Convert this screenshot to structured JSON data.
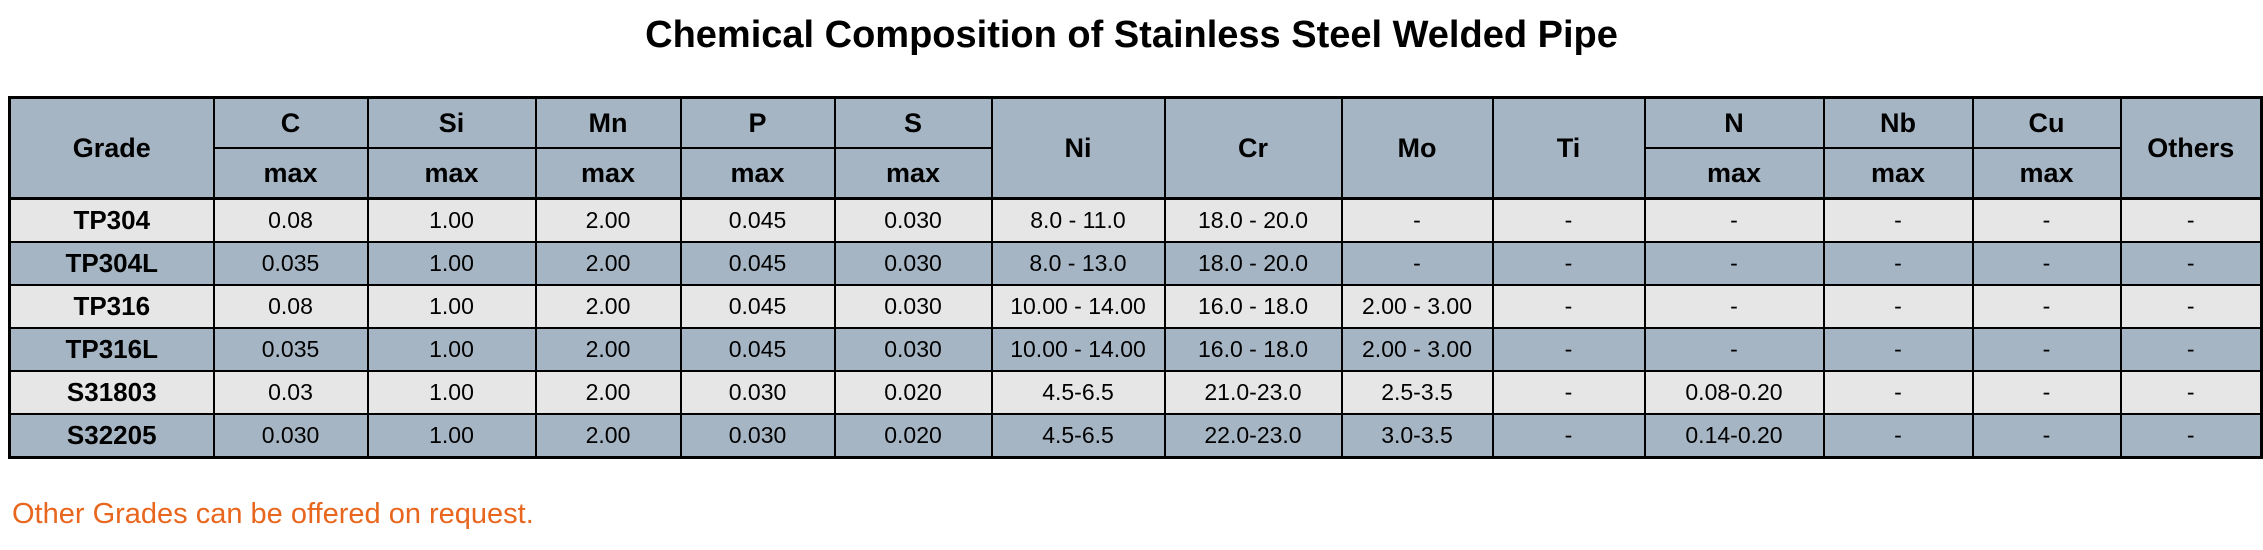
{
  "title": "Chemical Composition of Stainless Steel Welded Pipe",
  "headers": {
    "grade": "Grade",
    "c": "C",
    "si": "Si",
    "mn": "Mn",
    "p": "P",
    "s": "S",
    "ni": "Ni",
    "cr": "Cr",
    "mo": "Mo",
    "ti": "Ti",
    "n": "N",
    "nb": "Nb",
    "cu": "Cu",
    "others": "Others",
    "sub_max": "max"
  },
  "rows": [
    [
      "TP304",
      "0.08",
      "1.00",
      "2.00",
      "0.045",
      "0.030",
      "8.0 - 11.0",
      "18.0 - 20.0",
      "-",
      "-",
      "-",
      "-",
      "-",
      "-"
    ],
    [
      "TP304L",
      "0.035",
      "1.00",
      "2.00",
      "0.045",
      "0.030",
      "8.0 - 13.0",
      "18.0 - 20.0",
      "-",
      "-",
      "-",
      "-",
      "-",
      "-"
    ],
    [
      "TP316",
      "0.08",
      "1.00",
      "2.00",
      "0.045",
      "0.030",
      "10.00 - 14.00",
      "16.0 - 18.0",
      "2.00 - 3.00",
      "-",
      "-",
      "-",
      "-",
      "-"
    ],
    [
      "TP316L",
      "0.035",
      "1.00",
      "2.00",
      "0.045",
      "0.030",
      "10.00 - 14.00",
      "16.0 - 18.0",
      "2.00 - 3.00",
      "-",
      "-",
      "-",
      "-",
      "-"
    ],
    [
      "S31803",
      "0.03",
      "1.00",
      "2.00",
      "0.030",
      "0.020",
      "4.5-6.5",
      "21.0-23.0",
      "2.5-3.5",
      "-",
      "0.08-0.20",
      "-",
      "-",
      "-"
    ],
    [
      "S32205",
      "0.030",
      "1.00",
      "2.00",
      "0.030",
      "0.020",
      "4.5-6.5",
      "22.0-23.0",
      "3.0-3.5",
      "-",
      "0.14-0.20",
      "-",
      "-",
      "-"
    ]
  ],
  "note": "Other Grades can be offered on request.",
  "colors": {
    "header_bg": "#a6b5c4",
    "row_light": "#e6e6e6",
    "row_dark": "#a6b5c4",
    "note_text": "#e8661d"
  }
}
